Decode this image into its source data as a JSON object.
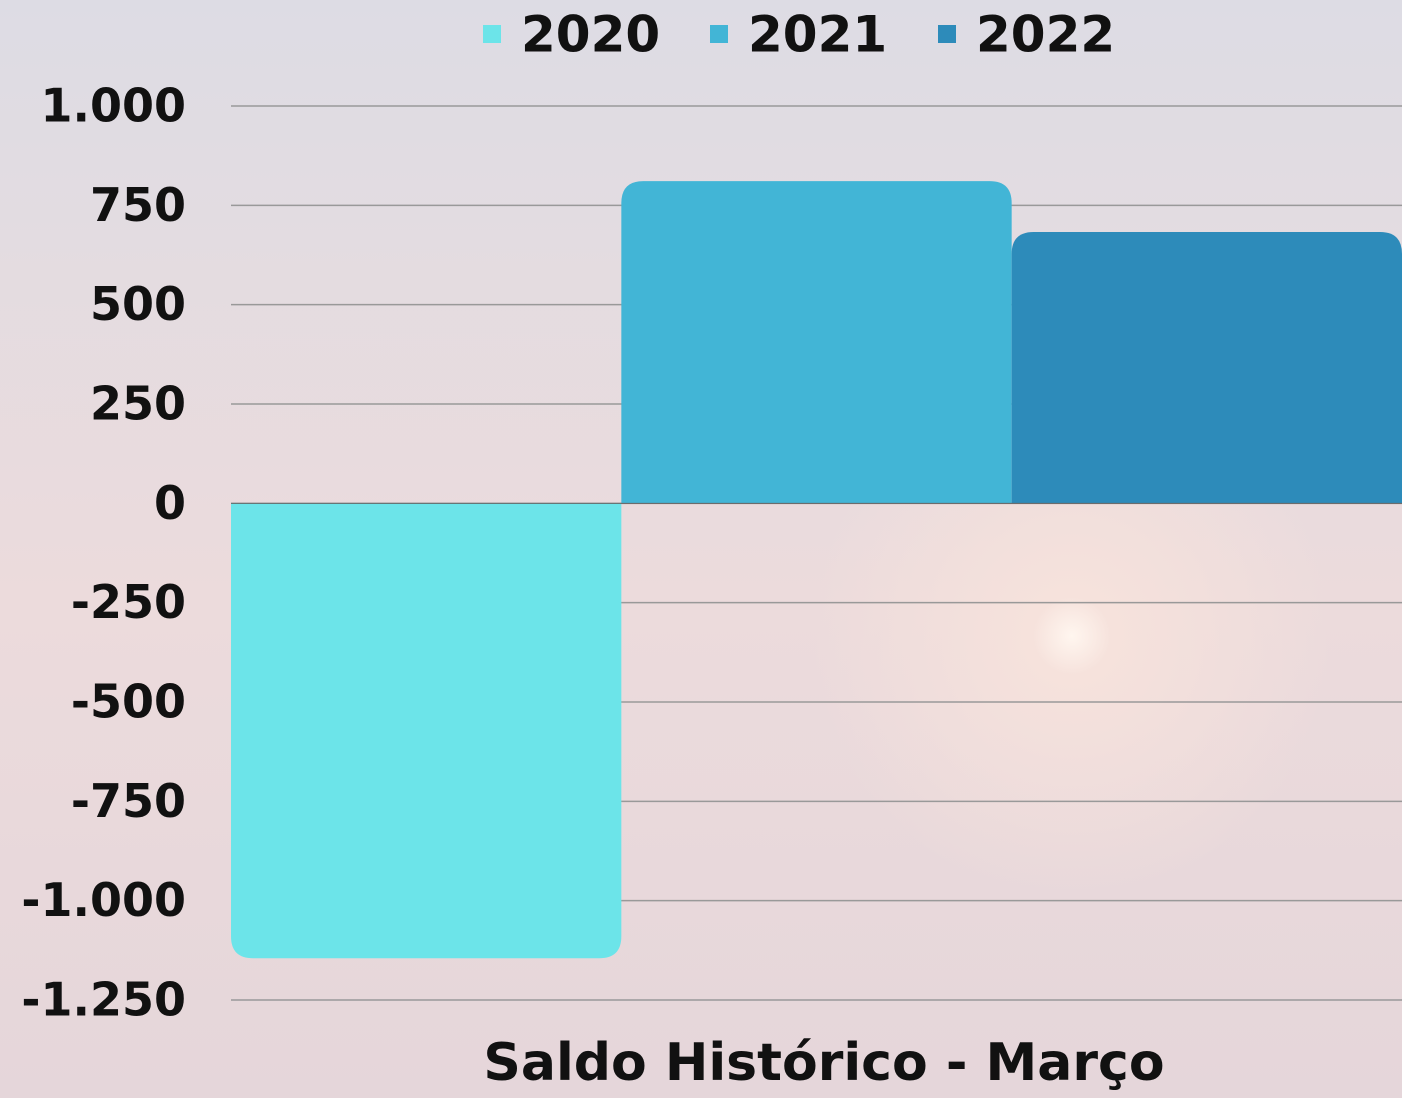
{
  "chart_data": {
    "type": "bar",
    "categories": [
      "Saldo Histórico - Março"
    ],
    "series": [
      {
        "name": "2020",
        "color": "#6ce4e9",
        "values": [
          -1145
        ]
      },
      {
        "name": "2021",
        "color": "#42b5d6",
        "values": [
          811
        ]
      },
      {
        "name": "2022",
        "color": "#2d8bba",
        "values": [
          683
        ]
      }
    ],
    "ylim": [
      -1250,
      1000
    ],
    "yticks": [
      {
        "value": 1000,
        "label": "1.000"
      },
      750,
      500,
      250,
      0,
      -250,
      -500,
      -750,
      {
        "value": -1000,
        "label": "-1.000"
      },
      {
        "value": -1250,
        "label": "-1.250"
      }
    ],
    "grid": true,
    "legend": "top"
  }
}
